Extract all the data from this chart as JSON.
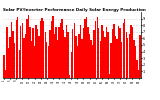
{
  "title": "Solar PV/Inverter Performance Daily Solar Energy Production",
  "bar_color": "#ff0000",
  "bg_color": "#ffffff",
  "plot_bg_color": "#ffffff",
  "grid_color": "#bbbbbb",
  "values": [
    3.5,
    1.2,
    7.8,
    4.5,
    6.2,
    8.5,
    7.1,
    5.3,
    8.8,
    9.2,
    4.3,
    7.9,
    8.4,
    6.1,
    6.6,
    8.9,
    9.5,
    7.8,
    5.6,
    7.5,
    4.8,
    8.1,
    7.4,
    6.3,
    8.6,
    9.1,
    8.7,
    7.0,
    5.4,
    4.9,
    7.2,
    8.7,
    9.4,
    6.7,
    7.8,
    5.8,
    7.7,
    8.3,
    9.0,
    7.3,
    6.2,
    8.0,
    6.9,
    0.5,
    4.0,
    7.4,
    8.4,
    6.3,
    4.8,
    6.6,
    8.1,
    5.9,
    7.5,
    8.9,
    9.3,
    7.7,
    6.6,
    5.7,
    5.0,
    7.3,
    8.6,
    9.2,
    7.6,
    5.6,
    8.0,
    7.1,
    6.2,
    7.7,
    6.9,
    0.6,
    5.3,
    7.4,
    8.2,
    6.4,
    5.9,
    7.9,
    7.5,
    5.5,
    8.4,
    9.0,
    7.0,
    6.1,
    6.6,
    8.1,
    7.7,
    5.8,
    4.9,
    2.8,
    1.2,
    6.5
  ],
  "ylim": [
    0,
    10
  ],
  "yticks": [
    1,
    2,
    3,
    4,
    5,
    6,
    7,
    8,
    9
  ],
  "title_fontsize": 3.0
}
